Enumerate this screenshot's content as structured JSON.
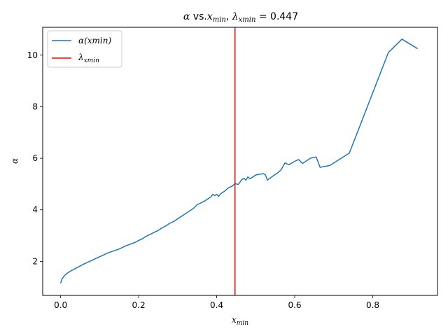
{
  "chart_data": {
    "type": "line",
    "title": {
      "prefix": "α",
      "vs": " vs.",
      "xmin_base": "x",
      "xmin_sub": "min",
      "sep": ",  ",
      "lambda": "λ",
      "lambda_sub": "xmin",
      "eq": " = 0.447"
    },
    "xlabel": {
      "base": "x",
      "sub": "min"
    },
    "ylabel": "α",
    "xlim": [
      -0.046,
      0.966
    ],
    "ylim": [
      0.68,
      11.08
    ],
    "xticks": [
      0.0,
      0.2,
      0.4,
      0.6,
      0.8
    ],
    "xtick_labels": [
      "0.0",
      "0.2",
      "0.4",
      "0.6",
      "0.8"
    ],
    "yticks": [
      2,
      4,
      6,
      8,
      10
    ],
    "ytick_labels": [
      "2",
      "4",
      "6",
      "8",
      "10"
    ],
    "grid": false,
    "legend": {
      "placement": "upper-left",
      "entries": [
        {
          "label": "α(xmin)",
          "color": "#1f77b4"
        },
        {
          "label_base": "λ",
          "label_sub": "xmin",
          "color": "#ff0000"
        }
      ]
    },
    "series": [
      {
        "color": "#1f77b4",
        "x": [
          0.0,
          0.003,
          0.008,
          0.015,
          0.025,
          0.04,
          0.06,
          0.08,
          0.1,
          0.12,
          0.15,
          0.17,
          0.19,
          0.2,
          0.21,
          0.22,
          0.23,
          0.25,
          0.26,
          0.27,
          0.28,
          0.29,
          0.3,
          0.31,
          0.32,
          0.33,
          0.34,
          0.35,
          0.36,
          0.37,
          0.38,
          0.385,
          0.39,
          0.395,
          0.4,
          0.405,
          0.41,
          0.42,
          0.43,
          0.44,
          0.447,
          0.455,
          0.465,
          0.47,
          0.475,
          0.48,
          0.485,
          0.49,
          0.5,
          0.51,
          0.52,
          0.525,
          0.53,
          0.545,
          0.555,
          0.565,
          0.575,
          0.585,
          0.6,
          0.61,
          0.62,
          0.64,
          0.655,
          0.665,
          0.69,
          0.74,
          0.84,
          0.875,
          0.915
        ],
        "values": [
          1.15,
          1.3,
          1.42,
          1.52,
          1.62,
          1.74,
          1.9,
          2.04,
          2.18,
          2.32,
          2.48,
          2.62,
          2.73,
          2.81,
          2.88,
          2.98,
          3.05,
          3.2,
          3.3,
          3.38,
          3.48,
          3.55,
          3.65,
          3.75,
          3.85,
          3.95,
          4.05,
          4.2,
          4.27,
          4.35,
          4.45,
          4.5,
          4.6,
          4.55,
          4.6,
          4.52,
          4.62,
          4.72,
          4.85,
          4.92,
          5.02,
          4.98,
          5.18,
          5.22,
          5.15,
          5.28,
          5.2,
          5.25,
          5.35,
          5.38,
          5.4,
          5.35,
          5.15,
          5.32,
          5.42,
          5.55,
          5.82,
          5.75,
          5.88,
          5.95,
          5.8,
          6.0,
          6.05,
          5.65,
          5.72,
          6.2,
          10.1,
          10.62,
          10.25
        ]
      }
    ],
    "vline": {
      "x": 0.447,
      "color": "#ff0000"
    }
  }
}
